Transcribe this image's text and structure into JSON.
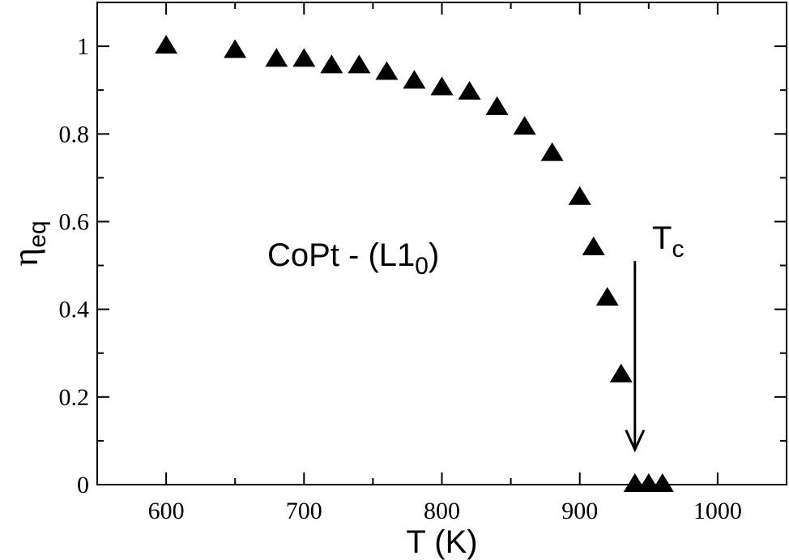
{
  "chart_data": {
    "type": "scatter",
    "title": "",
    "xlabel": "T (K)",
    "ylabel": {
      "main": "η",
      "sub": "eq"
    },
    "xlim": [
      550,
      1050
    ],
    "ylim": [
      0,
      1.1
    ],
    "xticks": [
      600,
      700,
      800,
      900,
      1000
    ],
    "yticks": [
      0,
      0.2,
      0.4,
      0.6,
      0.8,
      1
    ],
    "ytick_labels": [
      "0",
      "0.2",
      "0.4",
      "0.6",
      "0.8",
      "1"
    ],
    "grid": false,
    "marker": "triangle",
    "series": [
      {
        "x": [
          600,
          650,
          680,
          700,
          720,
          740,
          760,
          780,
          800,
          820,
          840,
          860,
          880,
          900,
          910,
          920,
          930,
          940,
          950,
          960
        ],
        "y": [
          1.0,
          0.99,
          0.97,
          0.97,
          0.955,
          0.955,
          0.94,
          0.92,
          0.905,
          0.895,
          0.86,
          0.815,
          0.755,
          0.655,
          0.54,
          0.425,
          0.25,
          0.0,
          0.0,
          0.0
        ]
      }
    ],
    "annotations": {
      "material": {
        "text": "CoPt - (L1",
        "sub": "0",
        "close": ")"
      },
      "tc": {
        "text": "T",
        "sub": "c",
        "arrow_x": 940,
        "arrow_from_y": 0.51,
        "arrow_to_y": 0.08
      }
    },
    "colors": {
      "marks": "#000000",
      "background": "#ffffff"
    }
  }
}
